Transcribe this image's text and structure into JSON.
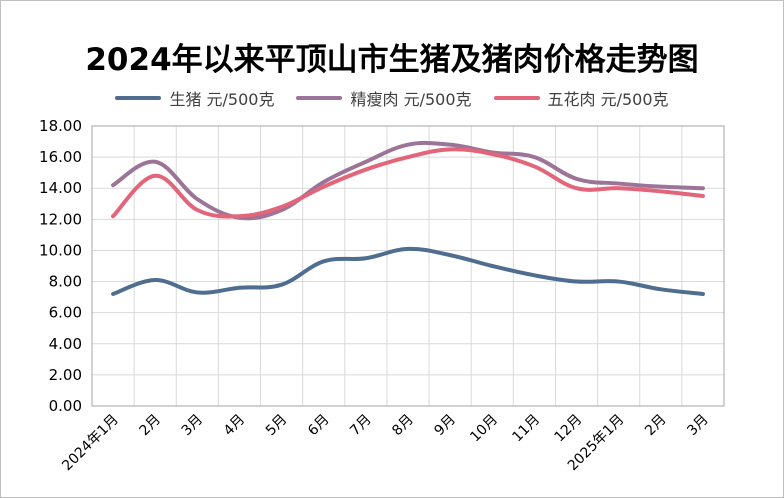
{
  "chart_data": {
    "type": "line",
    "title": "2024年以来平顶山市生猪及猪肉价格走势图",
    "categories": [
      "2024年1月",
      "2月",
      "3月",
      "4月",
      "5月",
      "6月",
      "7月",
      "8月",
      "9月",
      "10月",
      "11月",
      "12月",
      "2025年1月",
      "2月",
      "3月"
    ],
    "ylim": [
      0,
      18
    ],
    "yticks": [
      "0.00",
      "2.00",
      "4.00",
      "6.00",
      "8.00",
      "10.00",
      "12.00",
      "14.00",
      "16.00",
      "18.00"
    ],
    "grid": true,
    "legend_position": "top",
    "series": [
      {
        "name": "生猪 元/500克",
        "color": "#4f6d8f",
        "values": [
          7.2,
          8.1,
          7.3,
          7.6,
          7.8,
          9.3,
          9.5,
          10.1,
          9.7,
          9.0,
          8.4,
          8.0,
          8.0,
          7.5,
          7.2
        ]
      },
      {
        "name": "精瘦肉 元/500克",
        "color": "#9b7497",
        "values": [
          14.2,
          15.7,
          13.3,
          12.1,
          12.6,
          14.4,
          15.7,
          16.8,
          16.8,
          16.3,
          16.0,
          14.6,
          14.3,
          14.1,
          14.0
        ]
      },
      {
        "name": "五花肉 元/500克",
        "color": "#e2657a",
        "values": [
          12.2,
          14.8,
          12.6,
          12.2,
          12.8,
          14.1,
          15.2,
          16.0,
          16.5,
          16.2,
          15.4,
          14.0,
          14.0,
          13.8,
          13.5
        ]
      }
    ]
  }
}
